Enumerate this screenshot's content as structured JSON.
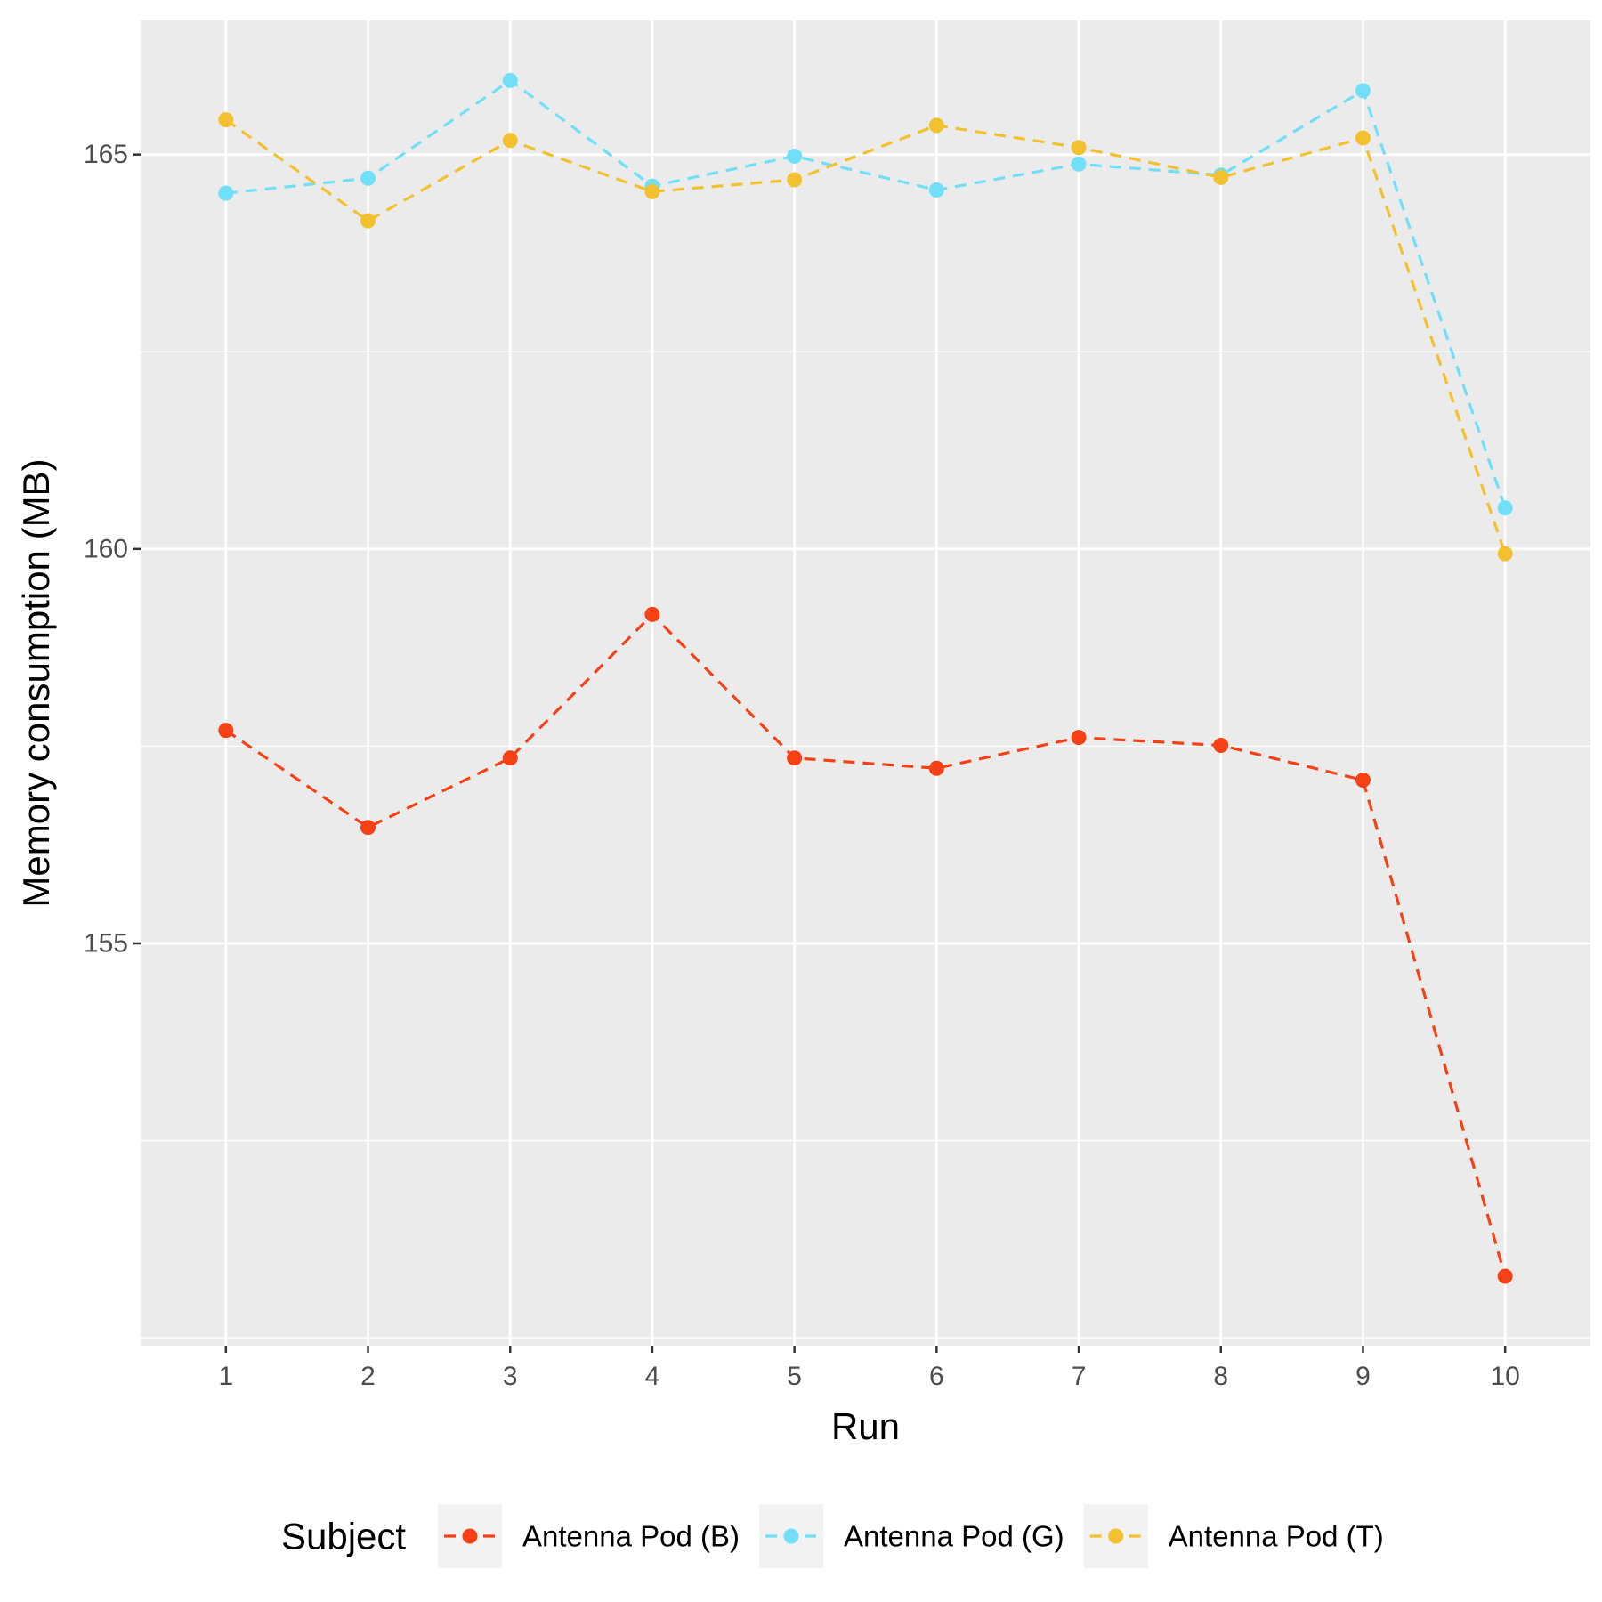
{
  "chart_data": {
    "type": "line",
    "xlabel": "Run",
    "ylabel": "Memory consumption (MB)",
    "x": [
      1,
      2,
      3,
      4,
      5,
      6,
      7,
      8,
      9,
      10
    ],
    "x_tick_labels": [
      "1",
      "2",
      "3",
      "4",
      "5",
      "6",
      "7",
      "8",
      "9",
      "10"
    ],
    "y_tick_values": [
      155,
      160,
      165
    ],
    "y_tick_labels": [
      "155",
      "160",
      "165"
    ],
    "xlim": [
      0.4,
      10.6
    ],
    "ylim": [
      149.9,
      166.7
    ],
    "grid": true,
    "line_style": "dashed",
    "legend": {
      "title": "Subject",
      "position": "bottom"
    },
    "series": [
      {
        "name": "Antenna Pod (B)",
        "color": "#f64016",
        "values": [
          157.7,
          156.47,
          157.35,
          159.17,
          157.35,
          157.22,
          157.61,
          157.51,
          157.07,
          150.78
        ]
      },
      {
        "name": "Antenna Pod (G)",
        "color": "#71dff8",
        "values": [
          164.51,
          164.7,
          165.94,
          164.6,
          164.98,
          164.55,
          164.88,
          164.74,
          165.81,
          160.52
        ]
      },
      {
        "name": "Antenna Pod (T)",
        "color": "#f3c12f",
        "values": [
          165.44,
          164.16,
          165.18,
          164.53,
          164.68,
          165.37,
          165.09,
          164.71,
          165.21,
          159.94
        ]
      }
    ]
  }
}
